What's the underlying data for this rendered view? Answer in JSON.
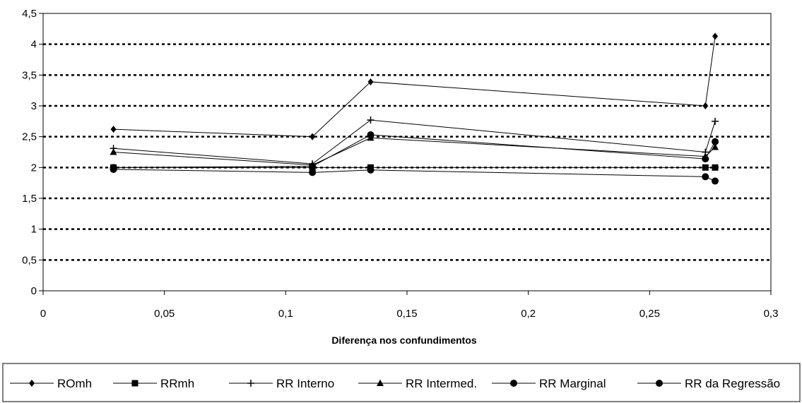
{
  "chart_data": {
    "type": "line",
    "title": "",
    "xlabel": "Diferença nos confundimentos",
    "ylabel": "",
    "xlim": [
      0,
      0.3
    ],
    "ylim": [
      0,
      4.5
    ],
    "x_ticks": [
      "0",
      "0,05",
      "0,1",
      "0,15",
      "0,2",
      "0,25",
      "0,3"
    ],
    "y_ticks": [
      "0",
      "0,5",
      "1",
      "1,5",
      "2",
      "2,5",
      "3",
      "3,5",
      "4",
      "4,5"
    ],
    "grid": "horizontal dotted",
    "legend_position": "bottom",
    "x": [
      0.029,
      0.111,
      0.135,
      0.273,
      0.277
    ],
    "series": [
      {
        "name": "ROmh",
        "marker": "diamond",
        "values": [
          2.62,
          2.5,
          3.39,
          3.0,
          4.13
        ]
      },
      {
        "name": "RRmh",
        "marker": "square",
        "values": [
          2.0,
          2.0,
          2.0,
          2.0,
          2.0
        ]
      },
      {
        "name": "RR Interno",
        "marker": "plus",
        "values": [
          2.31,
          2.06,
          2.77,
          2.25,
          2.75
        ]
      },
      {
        "name": "RR Intermed.",
        "marker": "triangle",
        "values": [
          2.25,
          2.04,
          2.48,
          2.18,
          2.33
        ]
      },
      {
        "name": "RR Marginal",
        "marker": "circle",
        "values": [
          1.97,
          1.92,
          1.96,
          1.85,
          1.78
        ]
      },
      {
        "name": "RR da Regressão",
        "marker": "circle",
        "values": [
          2.0,
          2.02,
          2.53,
          2.14,
          2.42
        ]
      }
    ]
  }
}
